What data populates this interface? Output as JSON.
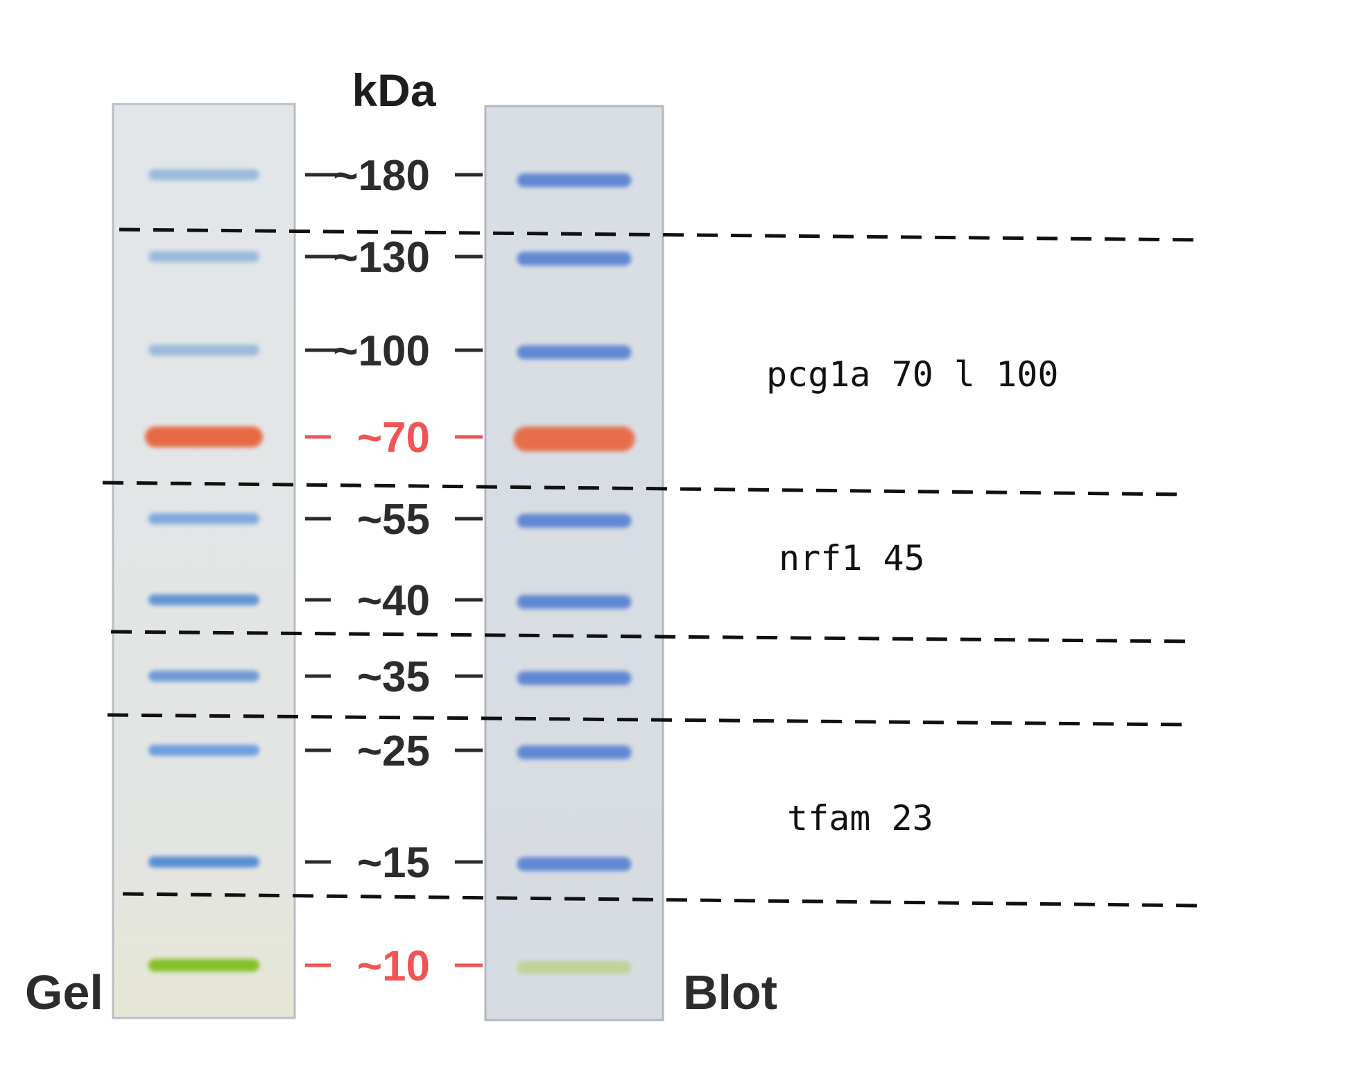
{
  "unit_label": "kDa",
  "lanes": {
    "gel_label": "Gel",
    "blot_label": "Blot"
  },
  "markers": [
    {
      "label": "~180",
      "kda": 180,
      "color": "#8fb3da",
      "highlight": false
    },
    {
      "label": "~130",
      "kda": 130,
      "color": "#8fb3da",
      "highlight": false
    },
    {
      "label": "~100",
      "kda": 100,
      "color": "#8fb3da",
      "highlight": false
    },
    {
      "label": "~70",
      "kda": 70,
      "color": "#e8633a",
      "highlight": true
    },
    {
      "label": "~55",
      "kda": 55,
      "color": "#6f9fdc",
      "highlight": false
    },
    {
      "label": "~40",
      "kda": 40,
      "color": "#4f86d0",
      "highlight": false
    },
    {
      "label": "~35",
      "kda": 35,
      "color": "#5a8fd6",
      "highlight": false
    },
    {
      "label": "~25",
      "kda": 25,
      "color": "#5a93dc",
      "highlight": false
    },
    {
      "label": "~15",
      "kda": 15,
      "color": "#3f7fd0",
      "highlight": false
    },
    {
      "label": "~10",
      "kda": 10,
      "color": "#7fbf1f",
      "highlight": true
    }
  ],
  "colors": {
    "default_marker_text": "#2c2c2c",
    "highlight_marker_text": "#f05454",
    "lane_fill": "#e1e4e6",
    "lane_border": "#b9bec3",
    "dashed_line": "#111111"
  },
  "annotations": [
    {
      "text": "pcg1a 70 l 100"
    },
    {
      "text": "nrf1 45"
    },
    {
      "text": "tfam 23"
    }
  ]
}
